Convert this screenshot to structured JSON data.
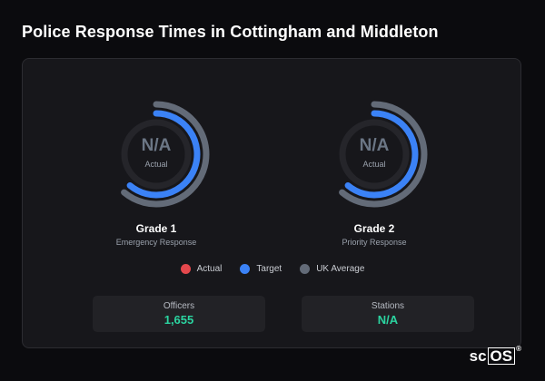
{
  "title": "Police Response Times in Cottingham and Middleton",
  "gauges": [
    {
      "value": "N/A",
      "sub": "Actual",
      "grade": "Grade 1",
      "desc": "Emergency Response"
    },
    {
      "value": "N/A",
      "sub": "Actual",
      "grade": "Grade 2",
      "desc": "Priority Response"
    }
  ],
  "legend": [
    {
      "label": "Actual",
      "color": "#e5484d"
    },
    {
      "label": "Target",
      "color": "#3b82f6"
    },
    {
      "label": "UK Average",
      "color": "#636b78"
    }
  ],
  "stats": [
    {
      "label": "Officers",
      "value": "1,655",
      "color": "#2bd4a0"
    },
    {
      "label": "Stations",
      "value": "N/A",
      "color": "#2bd4a0"
    }
  ],
  "logo": {
    "prefix": "sc",
    "boxed": "OS",
    "mark": "®"
  }
}
